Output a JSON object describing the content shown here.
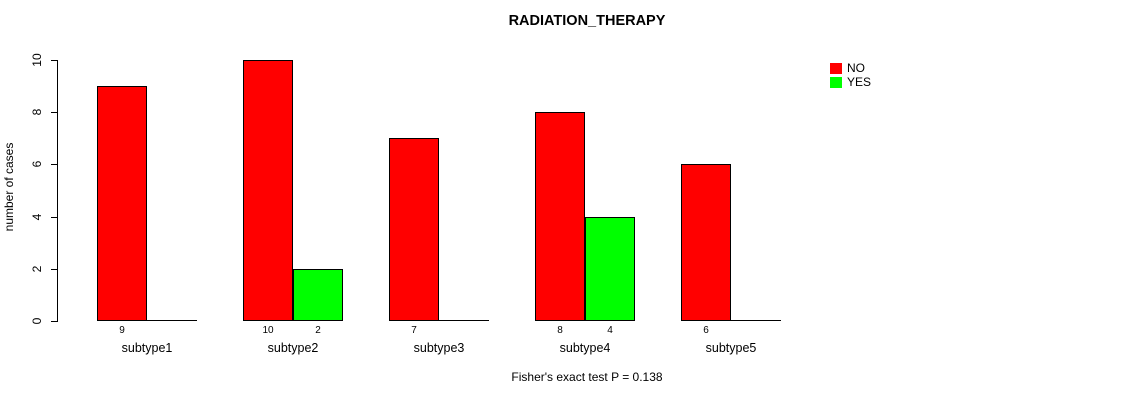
{
  "chart_data": {
    "type": "bar",
    "title": "RADIATION_THERAPY",
    "categories": [
      "subtype1",
      "subtype2",
      "subtype3",
      "subtype4",
      "subtype5"
    ],
    "series": [
      {
        "name": "NO",
        "color": "#ff0000",
        "values": [
          9,
          10,
          7,
          8,
          6
        ]
      },
      {
        "name": "YES",
        "color": "#00ff00",
        "values": [
          0,
          2,
          0,
          4,
          0
        ]
      }
    ],
    "bar_value_labels": {
      "NO": [
        "9",
        "10",
        "7",
        "8",
        "6"
      ],
      "YES": [
        "",
        "2",
        "",
        "4",
        ""
      ]
    },
    "xlabel": "",
    "ylabel": "number of cases",
    "ylim": [
      0,
      10
    ],
    "yticks": [
      0,
      2,
      4,
      6,
      8,
      10
    ],
    "grid": false,
    "legend": {
      "position": "right",
      "entries": [
        {
          "label": "NO",
          "color": "#ff0000"
        },
        {
          "label": "YES",
          "color": "#00ff00"
        }
      ]
    },
    "annotation": "Fisher's exact test P = 0.138"
  }
}
